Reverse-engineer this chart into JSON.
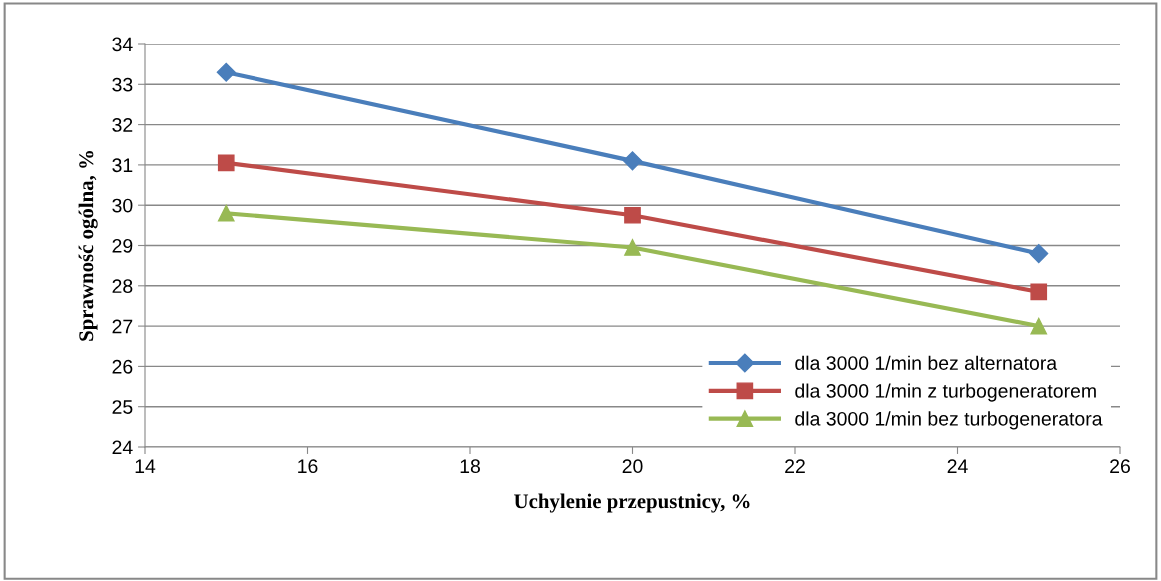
{
  "chart_data": {
    "type": "line",
    "xlabel": "Uchylenie przepustnicy, %",
    "ylabel": "Sprawność ogólna, %",
    "x": [
      15,
      20,
      25
    ],
    "series": [
      {
        "name": "dla 3000 1/min bez alternatora",
        "color": "#4a7ebb",
        "values": [
          33.3,
          31.1,
          28.8
        ],
        "marker": "diamond"
      },
      {
        "name": "dla 3000 1/min z turbogeneratorem",
        "color": "#be4b48",
        "values": [
          31.05,
          29.75,
          27.85
        ],
        "marker": "square"
      },
      {
        "name": "dla 3000 1/min bez turbogeneratora",
        "color": "#98b954",
        "values": [
          29.8,
          28.95,
          27.0
        ],
        "marker": "triangle"
      }
    ],
    "xlim": [
      14,
      26
    ],
    "xticks": [
      14,
      16,
      18,
      20,
      22,
      24,
      26
    ],
    "ylim": [
      24,
      34
    ],
    "yticks": [
      24,
      25,
      26,
      27,
      28,
      29,
      30,
      31,
      32,
      33,
      34
    ],
    "grid": "y",
    "legend": "bottom right",
    "line_style": "solid"
  }
}
